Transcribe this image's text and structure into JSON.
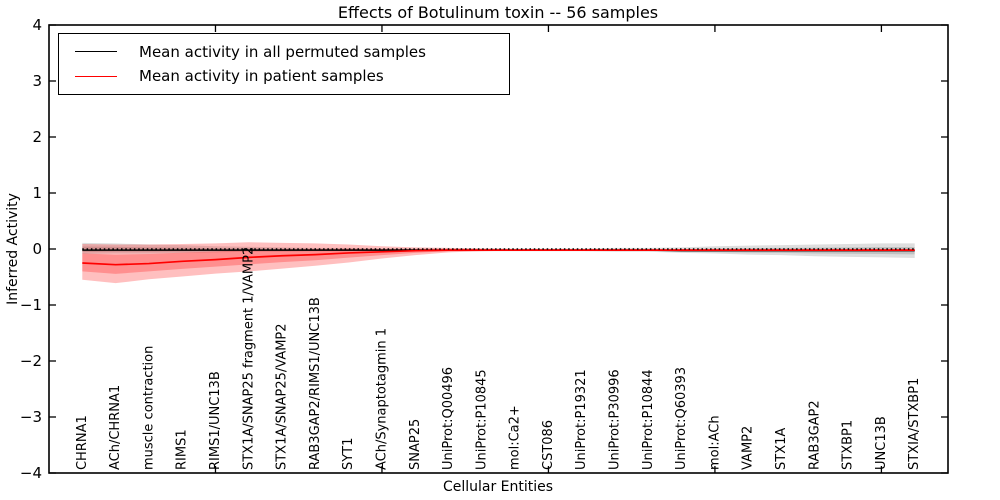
{
  "figure": {
    "title": "Effects of Botulinum toxin -- 56 samples",
    "xlabel": "Cellular Entities",
    "ylabel": "Inferred Activity"
  },
  "legend": {
    "position": "upper left",
    "items": [
      {
        "label": "Mean activity in all permuted samples",
        "color": "#000000"
      },
      {
        "label": "Mean activity in patient samples",
        "color": "#ff0000"
      }
    ]
  },
  "chart_data": {
    "type": "line",
    "title": "Effects of Botulinum toxin -- 56 samples",
    "xlabel": "Cellular Entities",
    "ylabel": "Inferred Activity",
    "ylim": [
      -4,
      4
    ],
    "xlim": [
      0,
      27
    ],
    "grid": false,
    "legend_position": "upper left",
    "ytick_values": [
      4,
      3,
      2,
      1,
      0,
      -1,
      -2,
      -3,
      -4
    ],
    "ytick_labels": [
      "4",
      "3",
      "2",
      "1",
      "0",
      "−1",
      "−2",
      "−3",
      "−4"
    ],
    "xtick_values": [
      5,
      10,
      15,
      20,
      25
    ],
    "zero_line": 0,
    "categories": [
      "CHRNA1",
      "ACh/CHRNA1",
      "muscle contraction",
      "RIMS1",
      "RIMS1/UNC13B",
      "STX1A/SNAP25 fragment 1/VAMP2",
      "STX1A/SNAP25/VAMP2",
      "RAB3GAP2/RIMS1/UNC13B",
      "SYT1",
      "ACh/Synaptotagmin 1",
      "SNAP25",
      "UniProt:Q00496",
      "UniProt:P10845",
      "mol:Ca2+",
      "CST086",
      "UniProt:P19321",
      "UniProt:P30996",
      "UniProt:P10844",
      "UniProt:Q60393",
      "mol:ACh",
      "VAMP2",
      "STX1A",
      "RAB3GAP2",
      "STXBP1",
      "UNC13B",
      "STXIA/STXBP1"
    ],
    "series": [
      {
        "name": "Mean activity in all permuted samples",
        "color": "#000000",
        "band_alpha": 0.13,
        "mean": [
          -0.02,
          -0.02,
          -0.02,
          -0.02,
          -0.02,
          -0.02,
          -0.02,
          -0.02,
          -0.02,
          -0.02,
          -0.02,
          -0.02,
          -0.02,
          -0.02,
          -0.02,
          -0.02,
          -0.02,
          -0.02,
          -0.03,
          -0.03,
          -0.03,
          -0.03,
          -0.03,
          -0.03,
          -0.03,
          -0.03
        ],
        "band_top": [
          0.11,
          0.1,
          0.08,
          0.07,
          0.05,
          0.04,
          0.03,
          0.02,
          0.02,
          0.01,
          0.01,
          0.01,
          0.01,
          0.01,
          0.01,
          0.01,
          0.02,
          0.02,
          0.03,
          0.05,
          0.06,
          0.07,
          0.08,
          0.09,
          0.1,
          0.1
        ],
        "band_bottom": [
          -0.09,
          -0.08,
          -0.08,
          -0.07,
          -0.06,
          -0.05,
          -0.05,
          -0.04,
          -0.04,
          -0.04,
          -0.04,
          -0.04,
          -0.04,
          -0.04,
          -0.04,
          -0.04,
          -0.05,
          -0.05,
          -0.07,
          -0.08,
          -0.1,
          -0.11,
          -0.13,
          -0.14,
          -0.15,
          -0.16
        ]
      },
      {
        "name": "Mean activity in patient samples",
        "color": "#ff0000",
        "band_alpha": 0.25,
        "mean": [
          -0.25,
          -0.28,
          -0.26,
          -0.22,
          -0.19,
          -0.15,
          -0.12,
          -0.1,
          -0.07,
          -0.05,
          -0.03,
          -0.02,
          -0.02,
          -0.02,
          -0.02,
          -0.02,
          -0.02,
          -0.02,
          -0.02,
          -0.02,
          -0.02,
          -0.02,
          -0.02,
          -0.02,
          -0.02,
          -0.02
        ],
        "band_top": [
          0.09,
          0.08,
          0.08,
          0.09,
          0.1,
          0.12,
          0.11,
          0.1,
          0.08,
          0.05,
          0.03,
          0.02,
          0.01,
          0.0,
          0.0,
          0.0,
          0.0,
          0.0,
          0.0,
          0.0,
          0.0,
          0.0,
          0.0,
          0.0,
          0.0,
          0.0
        ],
        "band_bottom": [
          -0.55,
          -0.61,
          -0.54,
          -0.49,
          -0.44,
          -0.4,
          -0.35,
          -0.3,
          -0.24,
          -0.17,
          -0.11,
          -0.06,
          -0.04,
          -0.03,
          -0.03,
          -0.03,
          -0.03,
          -0.03,
          -0.03,
          -0.03,
          -0.03,
          -0.03,
          -0.03,
          -0.03,
          -0.03,
          -0.03
        ]
      }
    ]
  }
}
